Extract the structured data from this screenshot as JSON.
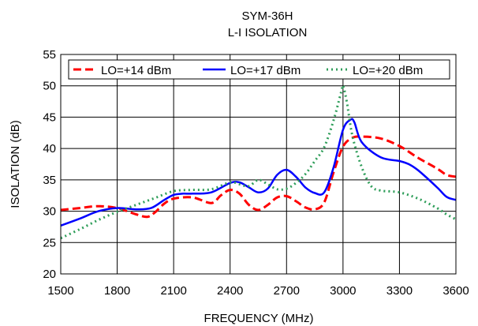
{
  "chart_data": {
    "type": "line",
    "title": "SYM-36H",
    "subtitle": "L-I ISOLATION",
    "xlabel": "FREQUENCY (MHz)",
    "ylabel": "ISOLATION (dB)",
    "xlim": [
      1500,
      3600
    ],
    "ylim": [
      20,
      55
    ],
    "xticks": [
      1500,
      1800,
      2100,
      2400,
      2700,
      3000,
      3300,
      3600
    ],
    "yticks": [
      20,
      25,
      30,
      35,
      40,
      45,
      50,
      55
    ],
    "grid": true,
    "legend_position": "top",
    "series": [
      {
        "name": "LO=+14 dBm",
        "color": "#ff0000",
        "dash": "dashed",
        "x": [
          1500,
          1600,
          1700,
          1800,
          1900,
          1960,
          2000,
          2050,
          2100,
          2200,
          2300,
          2350,
          2400,
          2450,
          2500,
          2550,
          2600,
          2650,
          2700,
          2750,
          2800,
          2850,
          2900,
          2950,
          3000,
          3050,
          3100,
          3200,
          3300,
          3400,
          3500,
          3550,
          3600
        ],
        "y": [
          30.2,
          30.5,
          30.8,
          30.5,
          29.5,
          29.1,
          29.8,
          31.2,
          32.0,
          32.2,
          31.3,
          32.5,
          33.4,
          32.8,
          31.0,
          30.2,
          31.0,
          32.2,
          32.4,
          31.6,
          30.6,
          30.3,
          31.4,
          36.2,
          40.3,
          41.7,
          41.9,
          41.6,
          40.4,
          38.5,
          36.8,
          35.8,
          35.5
        ]
      },
      {
        "name": "LO=+17 dBm",
        "color": "#0000ff",
        "dash": "solid",
        "x": [
          1500,
          1600,
          1700,
          1800,
          1900,
          1980,
          2050,
          2100,
          2150,
          2200,
          2300,
          2400,
          2450,
          2500,
          2550,
          2600,
          2650,
          2700,
          2750,
          2800,
          2850,
          2900,
          2950,
          3000,
          3040,
          3060,
          3100,
          3200,
          3300,
          3350,
          3400,
          3500,
          3550,
          3600
        ],
        "y": [
          27.7,
          28.8,
          30.0,
          30.5,
          30.3,
          30.5,
          31.8,
          32.6,
          32.8,
          32.8,
          33.0,
          34.5,
          34.6,
          33.8,
          33.0,
          33.6,
          35.8,
          36.6,
          35.5,
          33.8,
          32.9,
          33.0,
          37.0,
          43.0,
          44.6,
          44.2,
          41.0,
          38.6,
          38.0,
          37.5,
          36.5,
          33.8,
          32.3,
          31.8
        ]
      },
      {
        "name": "LO=+20 dBm",
        "color": "#2f9e5a",
        "dash": "dotted",
        "x": [
          1500,
          1600,
          1700,
          1800,
          1900,
          2000,
          2100,
          2200,
          2300,
          2400,
          2450,
          2500,
          2550,
          2600,
          2650,
          2700,
          2750,
          2800,
          2850,
          2900,
          2950,
          2990,
          3000,
          3020,
          3050,
          3100,
          3150,
          3200,
          3300,
          3400,
          3500,
          3550,
          3600
        ],
        "y": [
          25.7,
          27.1,
          28.6,
          29.9,
          31.0,
          32.1,
          33.2,
          33.4,
          33.5,
          34.6,
          34.3,
          34.0,
          35.0,
          34.3,
          33.5,
          33.6,
          34.5,
          35.9,
          38.0,
          40.2,
          44.5,
          49.0,
          50.0,
          47.5,
          42.0,
          37.0,
          34.0,
          33.3,
          33.0,
          32.0,
          30.5,
          29.5,
          28.7
        ]
      }
    ]
  }
}
